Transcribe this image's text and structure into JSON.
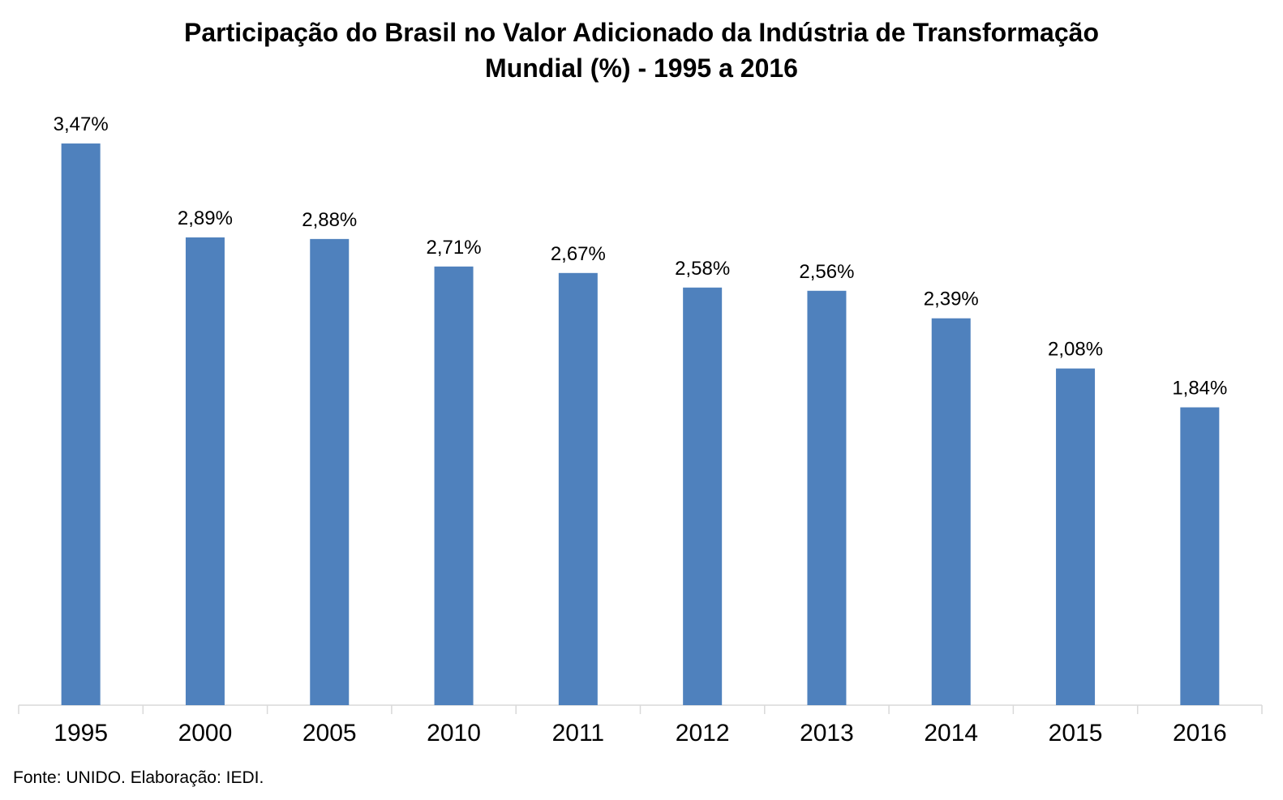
{
  "chart_data": {
    "type": "bar",
    "title_line1": "Participação do Brasil no Valor Adicionado da Indústria de Transformação",
    "title_line2": "Mundial (%) - 1995 a 2016",
    "categories": [
      "1995",
      "2000",
      "2005",
      "2010",
      "2011",
      "2012",
      "2013",
      "2014",
      "2015",
      "2016"
    ],
    "values": [
      3.47,
      2.89,
      2.88,
      2.71,
      2.67,
      2.58,
      2.56,
      2.39,
      2.08,
      1.84
    ],
    "data_labels": [
      "3,47%",
      "2,89%",
      "2,88%",
      "2,71%",
      "2,67%",
      "2,58%",
      "2,56%",
      "2,39%",
      "2,08%",
      "1,84%"
    ],
    "xlabel": "",
    "ylabel": "",
    "ylim": [
      0,
      3.5
    ],
    "grid": false,
    "bar_color": "#4f81bd",
    "axis_color": "#d9d9d9"
  },
  "source_note": "Fonte: UNIDO. Elaboração: IEDI."
}
